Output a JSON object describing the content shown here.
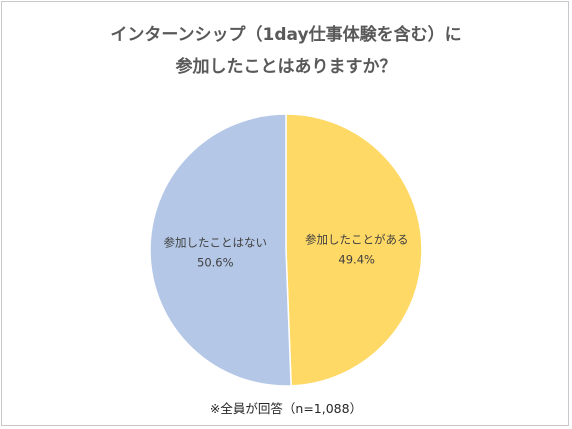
{
  "title_lines": [
    "インターンシップ（1day仕事体験を含む）に",
    "参加したことはありますか？"
  ],
  "note": "※全員が回答（n=1,088）",
  "colors": {
    "attended": "#ffd966",
    "not_attended": "#b4c7e7",
    "border": "#ffffff"
  },
  "chart_data": {
    "type": "pie",
    "title": "インターンシップ（1day仕事体験を含む）に参加したことはありますか？",
    "start": "12 o'clock, clockwise",
    "slices": [
      {
        "label": "参加したことがある",
        "value": 49.4,
        "display": "49.4%"
      },
      {
        "label": "参加したことはない",
        "value": 50.6,
        "display": "50.6%"
      }
    ]
  }
}
